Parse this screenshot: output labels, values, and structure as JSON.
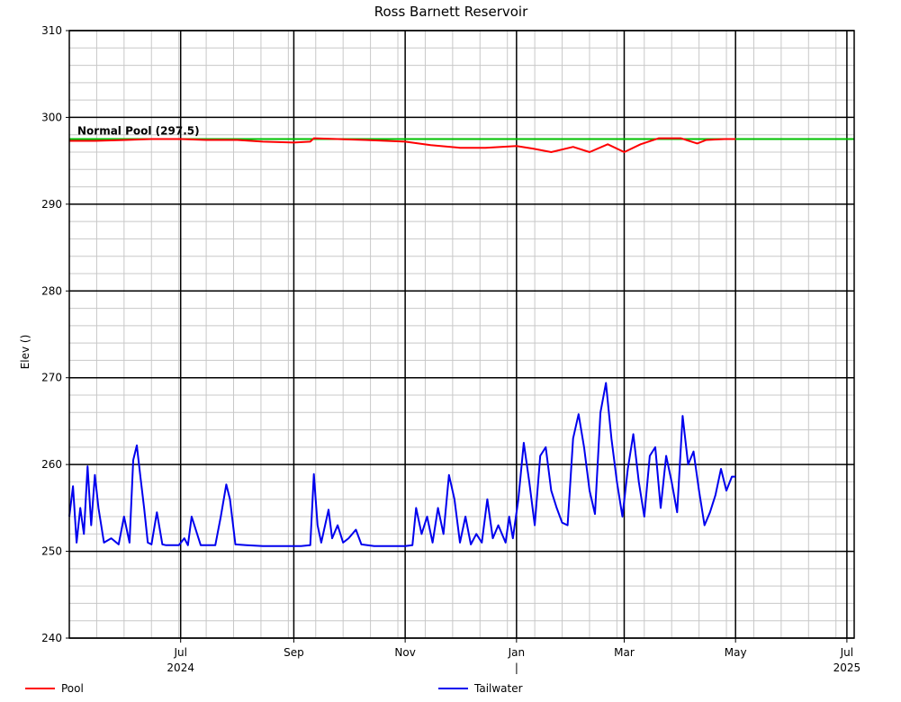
{
  "chart_data": {
    "type": "line",
    "title": "Ross Barnett Reservoir",
    "ylabel": "Elev ()",
    "ylim": [
      240,
      310
    ],
    "yticks": [
      "240",
      "250",
      "260",
      "270",
      "280",
      "290",
      "300",
      "310"
    ],
    "xlim": [
      "2024-05-01",
      "2025-07-05"
    ],
    "xticks": [
      {
        "date": "2024-07-01",
        "label": "Jul"
      },
      {
        "date": "2024-09-01",
        "label": "Sep"
      },
      {
        "date": "2024-11-01",
        "label": "Nov"
      },
      {
        "date": "2025-01-01",
        "label": "Jan"
      },
      {
        "date": "2025-03-01",
        "label": "Mar"
      },
      {
        "date": "2025-05-01",
        "label": "May"
      },
      {
        "date": "2025-07-01",
        "label": "Jul"
      }
    ],
    "year_labels": [
      {
        "date": "2024-07-01",
        "label": "2024"
      },
      {
        "date": "2025-01-01",
        "label": "|"
      },
      {
        "date": "2025-07-01",
        "label": "2025"
      }
    ],
    "grid": true,
    "legend": "bottom",
    "reference_line": {
      "label": "Normal Pool (297.5)",
      "value": 297.5,
      "color": "#00c000"
    },
    "series": [
      {
        "name": "Pool",
        "color": "#ff0000",
        "x": [
          "2024-05-01",
          "2024-05-15",
          "2024-06-01",
          "2024-06-15",
          "2024-07-01",
          "2024-07-15",
          "2024-08-01",
          "2024-08-15",
          "2024-09-01",
          "2024-09-10",
          "2024-09-12",
          "2024-09-25",
          "2024-10-10",
          "2024-11-01",
          "2024-11-15",
          "2024-12-01",
          "2024-12-15",
          "2025-01-01",
          "2025-01-10",
          "2025-01-20",
          "2025-02-01",
          "2025-02-10",
          "2025-02-20",
          "2025-03-01",
          "2025-03-10",
          "2025-03-20",
          "2025-04-01",
          "2025-04-10",
          "2025-04-15",
          "2025-04-25",
          "2025-05-01"
        ],
        "values": [
          297.3,
          297.3,
          297.4,
          297.5,
          297.5,
          297.4,
          297.4,
          297.2,
          297.1,
          297.2,
          297.6,
          297.5,
          297.4,
          297.2,
          296.8,
          296.5,
          296.5,
          296.7,
          296.4,
          296.0,
          296.6,
          296.0,
          296.9,
          296.0,
          296.9,
          297.6,
          297.6,
          297.0,
          297.4,
          297.5,
          297.5
        ]
      },
      {
        "name": "Tailwater",
        "color": "#0000ee",
        "x": [
          "2024-05-01",
          "2024-05-03",
          "2024-05-05",
          "2024-05-07",
          "2024-05-09",
          "2024-05-11",
          "2024-05-13",
          "2024-05-15",
          "2024-05-17",
          "2024-05-20",
          "2024-05-24",
          "2024-05-28",
          "2024-05-31",
          "2024-06-03",
          "2024-06-05",
          "2024-06-07",
          "2024-06-09",
          "2024-06-11",
          "2024-06-13",
          "2024-06-15",
          "2024-06-18",
          "2024-06-21",
          "2024-06-23",
          "2024-06-25",
          "2024-06-30",
          "2024-07-03",
          "2024-07-05",
          "2024-07-07",
          "2024-07-12",
          "2024-07-20",
          "2024-07-23",
          "2024-07-26",
          "2024-07-28",
          "2024-07-31",
          "2024-08-06",
          "2024-08-15",
          "2024-08-25",
          "2024-09-01",
          "2024-09-05",
          "2024-09-10",
          "2024-09-12",
          "2024-09-14",
          "2024-09-16",
          "2024-09-20",
          "2024-09-22",
          "2024-09-25",
          "2024-09-28",
          "2024-10-01",
          "2024-10-05",
          "2024-10-08",
          "2024-10-15",
          "2024-10-25",
          "2024-11-01",
          "2024-11-05",
          "2024-11-07",
          "2024-11-10",
          "2024-11-13",
          "2024-11-16",
          "2024-11-19",
          "2024-11-22",
          "2024-11-25",
          "2024-11-28",
          "2024-12-01",
          "2024-12-04",
          "2024-12-07",
          "2024-12-10",
          "2024-12-13",
          "2024-12-16",
          "2024-12-19",
          "2024-12-22",
          "2024-12-26",
          "2024-12-28",
          "2024-12-30",
          "2025-01-02",
          "2025-01-05",
          "2025-01-08",
          "2025-01-11",
          "2025-01-14",
          "2025-01-17",
          "2025-01-20",
          "2025-01-23",
          "2025-01-26",
          "2025-01-29",
          "2025-02-01",
          "2025-02-04",
          "2025-02-07",
          "2025-02-10",
          "2025-02-13",
          "2025-02-16",
          "2025-02-19",
          "2025-02-22",
          "2025-02-25",
          "2025-02-28",
          "2025-03-03",
          "2025-03-06",
          "2025-03-09",
          "2025-03-12",
          "2025-03-15",
          "2025-03-18",
          "2025-03-21",
          "2025-03-24",
          "2025-03-27",
          "2025-03-30",
          "2025-04-02",
          "2025-04-05",
          "2025-04-08",
          "2025-04-11",
          "2025-04-14",
          "2025-04-17",
          "2025-04-20",
          "2025-04-23",
          "2025-04-26",
          "2025-04-29",
          "2025-05-01"
        ],
        "values": [
          254.0,
          257.5,
          251.0,
          255.0,
          252.0,
          259.8,
          253.0,
          258.8,
          255.0,
          251.0,
          251.5,
          250.8,
          254.0,
          251.0,
          260.5,
          262.2,
          258.5,
          255.0,
          251.0,
          250.8,
          254.5,
          250.8,
          250.7,
          250.7,
          250.7,
          251.5,
          250.7,
          254.0,
          250.7,
          250.7,
          254.0,
          257.7,
          256.0,
          250.8,
          250.7,
          250.6,
          250.6,
          250.6,
          250.6,
          250.7,
          258.9,
          253.0,
          251.0,
          254.8,
          251.5,
          253.0,
          251.0,
          251.5,
          252.5,
          250.8,
          250.6,
          250.6,
          250.6,
          250.7,
          255.0,
          252.0,
          254.0,
          251.0,
          255.0,
          252.0,
          258.8,
          256.0,
          251.0,
          254.0,
          250.8,
          252.0,
          251.0,
          256.0,
          251.5,
          253.0,
          251.0,
          254.0,
          251.5,
          256.0,
          262.5,
          258.0,
          253.0,
          261.0,
          262.0,
          257.0,
          255.0,
          253.3,
          253.0,
          263.0,
          265.8,
          262.0,
          257.0,
          254.3,
          266.0,
          269.4,
          263.0,
          258.0,
          254.0,
          259.5,
          263.5,
          258.0,
          254.0,
          261.0,
          262.0,
          255.0,
          261.0,
          258.0,
          254.5,
          265.6,
          260.0,
          261.5,
          257.0,
          253.0,
          254.5,
          256.5,
          259.5,
          257.0,
          258.6,
          258.6
        ]
      }
    ]
  }
}
